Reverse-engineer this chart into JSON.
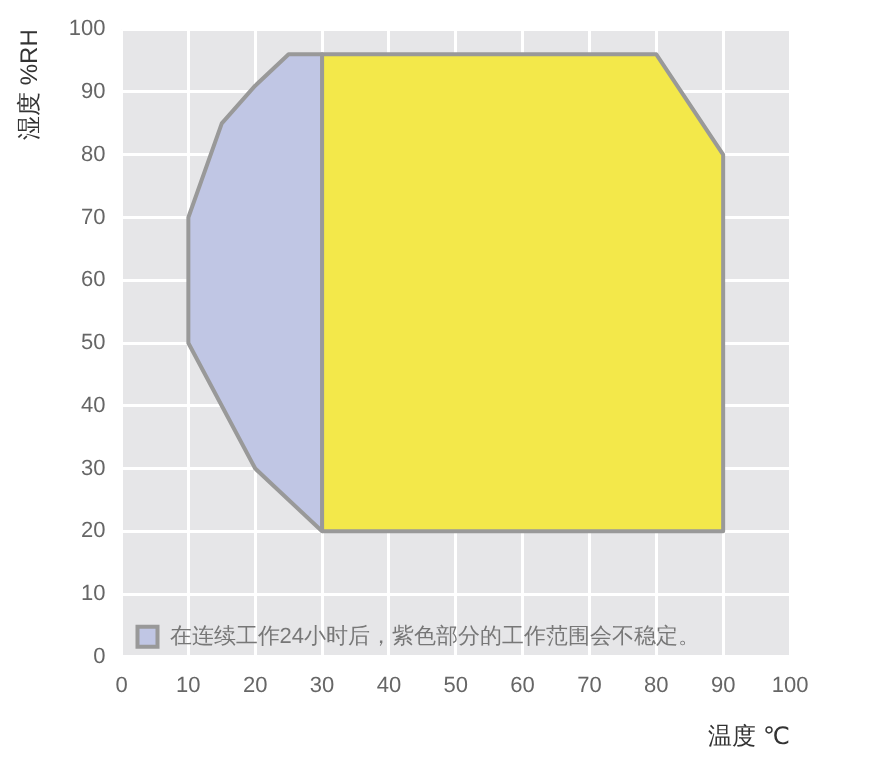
{
  "chart_data": {
    "type": "area",
    "xlabel": "温度 ℃",
    "ylabel": "湿度 %RH",
    "xlim": [
      0,
      100
    ],
    "xticks": [
      0,
      10,
      20,
      30,
      40,
      50,
      60,
      70,
      80,
      90,
      100
    ],
    "ylim": [
      0,
      100
    ],
    "yticks": [
      0,
      10,
      20,
      30,
      40,
      50,
      60,
      70,
      80,
      90,
      100
    ],
    "grid": true,
    "legend": "bottom left",
    "marker": "none",
    "line_style": "solid",
    "series": [
      {
        "name": "在连续工作24小时后，紫色部分的工作范围会不稳定。",
        "color": "#c0c6e4",
        "x": [
          30,
          20,
          10,
          10,
          15,
          20,
          25,
          30,
          30
        ],
        "values": [
          20,
          30,
          50,
          70,
          85,
          91,
          96,
          96,
          20
        ]
      },
      {
        "color": "#f3e84a",
        "x": [
          30,
          30,
          80,
          90,
          90,
          30
        ],
        "values": [
          20,
          96,
          96,
          80,
          20,
          20
        ]
      }
    ]
  }
}
